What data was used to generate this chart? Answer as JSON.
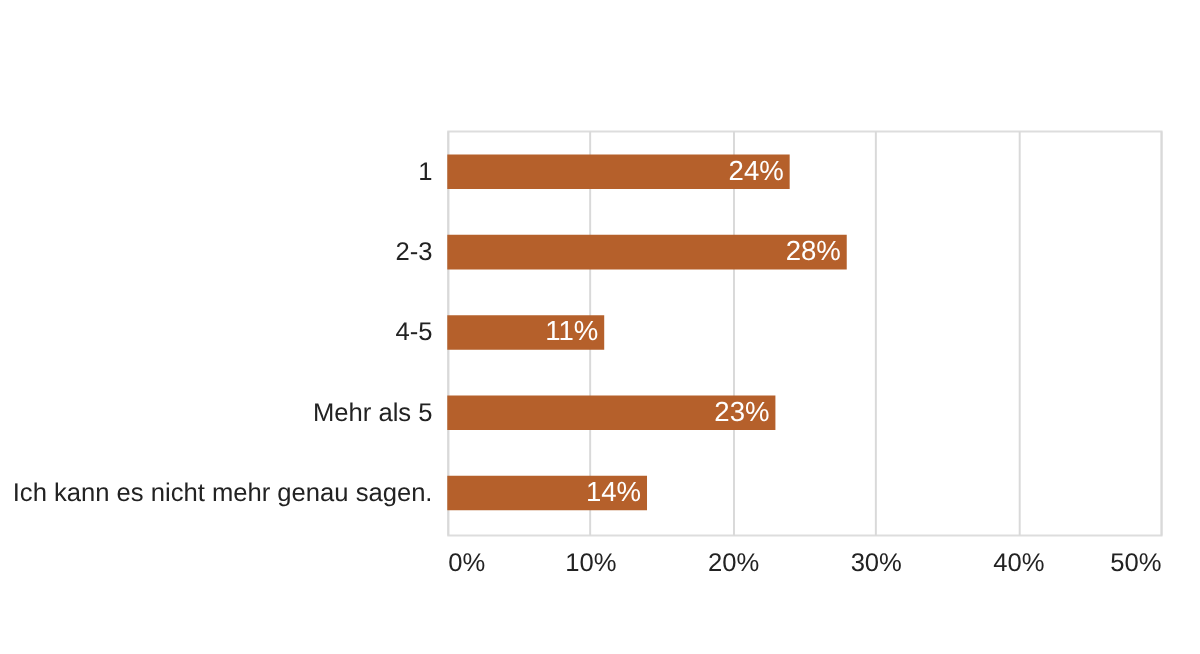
{
  "chart_data": {
    "type": "bar",
    "orientation": "horizontal",
    "categories": [
      "1",
      "2-3",
      "4-5",
      "Mehr als 5",
      "Ich kann es nicht mehr genau sagen."
    ],
    "values": [
      24,
      28,
      11,
      23,
      14
    ],
    "value_labels": [
      "24%",
      "28%",
      "11%",
      "23%",
      "14%"
    ],
    "color": "#b5602b",
    "xlim": [
      0,
      50
    ],
    "xticks": [
      {
        "value": 0,
        "label": "0%"
      },
      {
        "value": 10,
        "label": "10%"
      },
      {
        "value": 20,
        "label": "20%"
      },
      {
        "value": 30,
        "label": "30%"
      },
      {
        "value": 40,
        "label": "40%"
      },
      {
        "value": 50,
        "label": "50%"
      }
    ],
    "grid": "x"
  }
}
